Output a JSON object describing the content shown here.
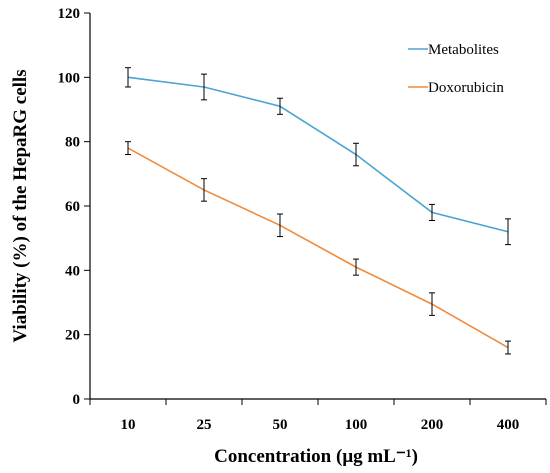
{
  "chart_data": {
    "type": "line",
    "title": "",
    "xlabel": "Concentration (μg mL⁻¹)",
    "ylabel": "Viability (%) of the HepaRG cells",
    "categories": [
      "10",
      "25",
      "50",
      "100",
      "200",
      "400"
    ],
    "ylim": [
      0,
      120
    ],
    "yticks": [
      0,
      20,
      40,
      60,
      80,
      100,
      120
    ],
    "grid": false,
    "legend_position": "top-right",
    "series": [
      {
        "name": "Metabolites",
        "color": "#4ba3d3",
        "values": [
          100,
          97,
          91,
          76,
          58,
          52
        ],
        "errors": [
          3,
          4,
          2.5,
          3.5,
          2.5,
          4
        ]
      },
      {
        "name": "Doxorubicin",
        "color": "#ef8a3c",
        "values": [
          78,
          65,
          54,
          41,
          29.5,
          16
        ],
        "errors": [
          2,
          3.5,
          3.5,
          2.5,
          3.5,
          2
        ]
      }
    ]
  }
}
